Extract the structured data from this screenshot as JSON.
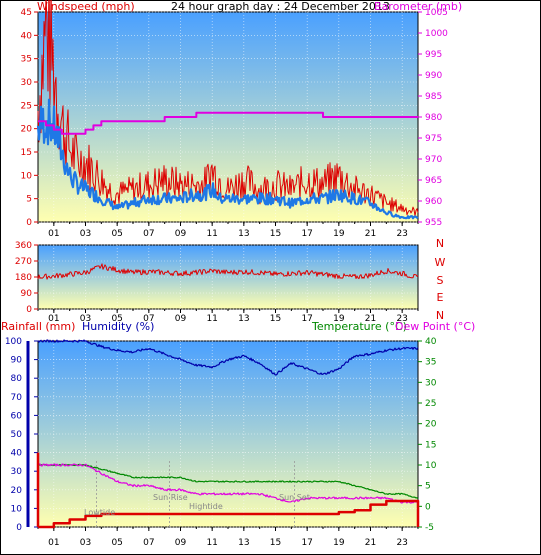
{
  "title": "24 hour graph day : 24 December 2013",
  "colors": {
    "wind": "#dd0000",
    "gust_avg": "#1e78e6",
    "barometer": "#e000e0",
    "winddir": "#dd0000",
    "rain": "#dd0000",
    "humidity": "#0000aa",
    "temperature": "#008800",
    "dewpoint": "#e000e0",
    "sky_top": "#4aa0ff",
    "sky_bottom": "#ffffb0"
  },
  "x_ticks": [
    "01",
    "03",
    "05",
    "07",
    "09",
    "11",
    "13",
    "15",
    "17",
    "19",
    "21",
    "23"
  ],
  "chart_data": [
    {
      "type": "line",
      "panel": "wind",
      "y_left_label": "Windspeed (mph)",
      "y_right_label": "Barometer (mb)",
      "ylim": [
        0,
        45
      ],
      "y2lim": [
        955,
        1005
      ],
      "y_ticks": [
        0,
        5,
        10,
        15,
        20,
        25,
        30,
        35,
        40,
        45
      ],
      "y2_ticks": [
        955,
        960,
        965,
        970,
        975,
        980,
        985,
        990,
        995,
        1000,
        1005
      ],
      "x_hours": [
        0,
        0.5,
        1,
        1.5,
        2,
        2.5,
        3,
        3.5,
        4,
        4.5,
        5,
        6,
        7,
        8,
        9,
        10,
        10.5,
        11,
        11.5,
        12,
        13,
        14,
        15,
        16,
        17,
        18,
        19,
        20,
        21,
        22,
        23,
        24
      ],
      "series": [
        {
          "name": "Windspeed",
          "axis": "left",
          "values": [
            24,
            42,
            33,
            21,
            16,
            13,
            13,
            11,
            9,
            7,
            6,
            7,
            8,
            9,
            8,
            8,
            8,
            11,
            9,
            7,
            9,
            7,
            8,
            7,
            9,
            8,
            10,
            7,
            6,
            4,
            3,
            2
          ]
        },
        {
          "name": "Average",
          "axis": "left",
          "values": [
            20,
            22,
            20,
            15,
            10,
            8,
            7,
            6,
            5,
            4,
            3,
            4,
            5,
            5,
            5,
            6,
            6,
            7,
            5,
            5,
            5,
            5,
            5,
            4,
            5,
            5,
            6,
            5,
            4,
            2,
            1,
            1
          ]
        },
        {
          "name": "Barometer",
          "axis": "right",
          "values": [
            979,
            978,
            977,
            976,
            976,
            976,
            977,
            978,
            979,
            979,
            979,
            979,
            979,
            980,
            980,
            981,
            981,
            981,
            981,
            981,
            981,
            981,
            981,
            981,
            981,
            980,
            980,
            980,
            980,
            980,
            980,
            980
          ]
        }
      ]
    },
    {
      "type": "scatter",
      "panel": "wind direction",
      "y_ticks": [
        0,
        90,
        180,
        270,
        360
      ],
      "y_right_labels": [
        "N",
        "W",
        "S",
        "E",
        "N"
      ],
      "ylim": [
        0,
        360
      ],
      "x_hours": [
        0,
        1,
        2,
        3,
        4,
        5,
        6,
        7,
        8,
        9,
        10,
        11,
        12,
        13,
        14,
        15,
        16,
        17,
        18,
        19,
        20,
        21,
        22,
        23,
        24
      ],
      "values": [
        180,
        185,
        195,
        205,
        240,
        220,
        205,
        210,
        205,
        200,
        205,
        215,
        205,
        210,
        205,
        195,
        200,
        205,
        195,
        185,
        180,
        190,
        215,
        200,
        175
      ]
    },
    {
      "type": "line",
      "panel": "rain / humidity / temperature",
      "legend": [
        "Rainfall (mm)",
        "Humidity (%)",
        "Temperature (°C)",
        "Dew Point (°C)"
      ],
      "ylim": [
        0,
        100
      ],
      "y2lim": [
        -5,
        40
      ],
      "y_ticks": [
        0,
        10,
        20,
        30,
        40,
        50,
        60,
        70,
        80,
        90,
        100
      ],
      "y2_ticks": [
        -5,
        0,
        5,
        10,
        15,
        20,
        25,
        30,
        35,
        40
      ],
      "annotations": [
        "Lowtide",
        "Sun Rise",
        "Hightide",
        "Sun Set"
      ],
      "x_hours": [
        0,
        1,
        2,
        3,
        4,
        5,
        6,
        7,
        8,
        9,
        10,
        11,
        12,
        13,
        14,
        15,
        16,
        17,
        18,
        19,
        20,
        21,
        22,
        23,
        24
      ],
      "series": [
        {
          "name": "Humidity (%)",
          "axis": "left",
          "values": [
            100,
            100,
            100,
            100,
            97,
            95,
            94,
            96,
            93,
            90,
            87,
            86,
            90,
            92,
            88,
            82,
            88,
            85,
            82,
            85,
            92,
            93,
            95,
            96,
            96
          ]
        },
        {
          "name": "Rainfall (mm)",
          "axis": "left",
          "values": [
            0,
            2,
            4,
            6,
            7,
            7,
            7,
            7,
            7,
            7,
            7,
            7,
            7,
            7,
            7,
            7,
            7,
            7,
            7,
            8,
            9,
            12,
            14,
            14,
            0
          ]
        },
        {
          "name": "Temperature (°C)",
          "axis": "right",
          "values": [
            10,
            10,
            10,
            10,
            9,
            8,
            7,
            7,
            7,
            7,
            6,
            6,
            6,
            6,
            6,
            6,
            6,
            6,
            6,
            6,
            5,
            4,
            3,
            3,
            2
          ]
        },
        {
          "name": "Dew Point (°C)",
          "axis": "right",
          "values": [
            10,
            10,
            10,
            10,
            8,
            6,
            5,
            5,
            4,
            4,
            3,
            3,
            3,
            3,
            3,
            2,
            1,
            2,
            2,
            2,
            2,
            2,
            2,
            1,
            1
          ]
        }
      ]
    }
  ]
}
